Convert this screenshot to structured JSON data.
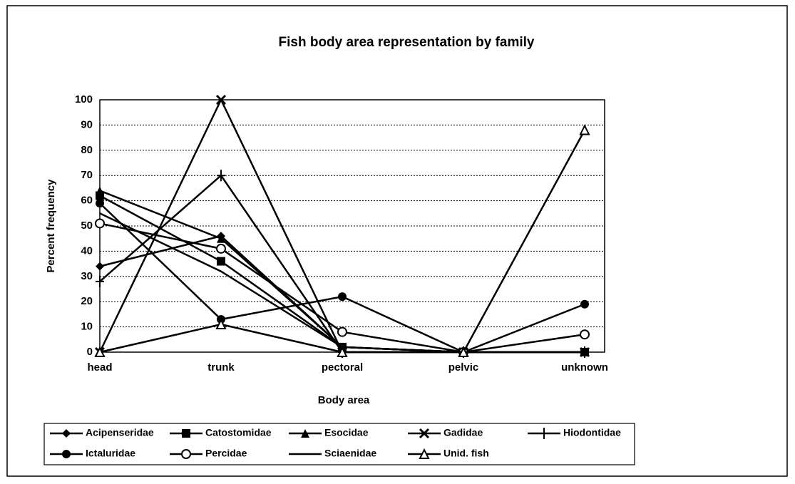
{
  "chart_data": {
    "type": "line",
    "title": "Fish body area representation by family",
    "x_label": "Body area",
    "y_label": "Percent frequency",
    "categories": [
      "head",
      "trunk",
      "pectoral",
      "pelvic",
      "unknown"
    ],
    "ylim": [
      0,
      100
    ],
    "yticks": [
      0,
      10,
      20,
      30,
      40,
      50,
      60,
      70,
      80,
      90,
      100
    ],
    "grid": true,
    "legend": "bottom",
    "series": [
      {
        "name": "Acipenseridae",
        "color": "#000000",
        "marker": "diamond",
        "values": [
          34,
          46,
          2,
          0,
          0
        ]
      },
      {
        "name": "Catostomidae",
        "color": "#000000",
        "marker": "square",
        "values": [
          62,
          36,
          2,
          0,
          0
        ]
      },
      {
        "name": "Esocidae",
        "color": "#000000",
        "marker": "triangle",
        "values": [
          64,
          45,
          2,
          0,
          0
        ]
      },
      {
        "name": "Gadidae",
        "color": "#000000",
        "marker": "x",
        "values": [
          0,
          100,
          0,
          0,
          0
        ]
      },
      {
        "name": "Hiodontidae",
        "color": "#000000",
        "marker": "plus",
        "values": [
          28,
          70,
          0,
          0,
          0
        ]
      },
      {
        "name": "Ictaluridae",
        "color": "#000000",
        "marker": "circle",
        "values": [
          59,
          13,
          22,
          0,
          19
        ]
      },
      {
        "name": "Percidae",
        "color": "#000000",
        "marker": "open-circle",
        "values": [
          51,
          41,
          8,
          0,
          7
        ]
      },
      {
        "name": "Sciaenidae",
        "color": "#000000",
        "marker": "none",
        "values": [
          55,
          32,
          2,
          0,
          0
        ]
      },
      {
        "name": "Unid. fish",
        "color": "#000000",
        "marker": "open-triangle",
        "values": [
          0,
          11,
          0,
          0,
          88
        ]
      }
    ]
  }
}
